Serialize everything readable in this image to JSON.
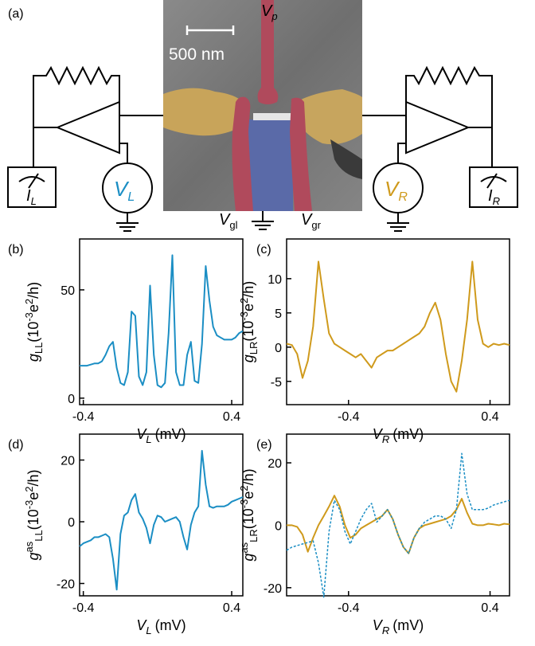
{
  "diagram": {
    "panel_label": "(a)",
    "scale_bar": "500 nm",
    "gate_p": {
      "text": "V",
      "sub": "p"
    },
    "gate_gl": {
      "text": "V",
      "sub": "gl"
    },
    "gate_gr": {
      "text": "V",
      "sub": "gr"
    },
    "meter_left": {
      "text": "I",
      "sub": "L"
    },
    "source_left": {
      "text": "V",
      "sub": "L"
    },
    "source_right": {
      "text": "V",
      "sub": "R"
    },
    "meter_right": {
      "text": "I",
      "sub": "R"
    }
  },
  "chart_data": [
    {
      "type": "line",
      "panel_label": "(b)",
      "x_label": {
        "symbol": "V",
        "sub": "L",
        "unit": "(mV)"
      },
      "y_label": [
        {
          "text": "g",
          "style": "italic"
        },
        {
          "text": "LL",
          "style": "sub"
        },
        {
          "text": "(10"
        },
        {
          "text": "-3",
          "style": "sup"
        },
        {
          "text": "e"
        },
        {
          "text": "2",
          "style": "sup"
        },
        {
          "text": "/h)"
        }
      ],
      "xlim": [
        -0.42,
        0.46
      ],
      "xticks": [
        -0.4,
        0.4
      ],
      "ylim": [
        -3,
        73.5
      ],
      "yticks": [
        0,
        50
      ],
      "color": "#1b8ec4",
      "x": [
        -0.42,
        -0.4,
        -0.38,
        -0.36,
        -0.34,
        -0.32,
        -0.3,
        -0.28,
        -0.26,
        -0.24,
        -0.22,
        -0.2,
        -0.18,
        -0.16,
        -0.14,
        -0.12,
        -0.1,
        -0.08,
        -0.06,
        -0.04,
        -0.02,
        0,
        0.02,
        0.04,
        0.06,
        0.08,
        0.1,
        0.12,
        0.14,
        0.16,
        0.18,
        0.2,
        0.22,
        0.24,
        0.26,
        0.28,
        0.3,
        0.32,
        0.34,
        0.36,
        0.38,
        0.4,
        0.42,
        0.44,
        0.46
      ],
      "values": [
        15,
        15,
        15,
        15.5,
        16,
        16,
        17,
        20,
        24,
        26,
        14,
        7,
        6,
        12,
        40,
        38,
        10,
        6,
        12,
        52,
        20,
        6,
        5,
        7,
        30,
        66,
        12,
        6,
        6,
        20,
        26,
        8,
        7,
        25,
        61,
        45,
        33,
        29,
        28,
        27,
        27,
        27,
        28,
        30,
        31
      ]
    },
    {
      "type": "line",
      "panel_label": "(c)",
      "x_label": {
        "symbol": "V",
        "sub": "R",
        "unit": "(mV)"
      },
      "y_label": [
        {
          "text": "g",
          "style": "italic"
        },
        {
          "text": "LR",
          "style": "sub"
        },
        {
          "text": "(10"
        },
        {
          "text": "-3",
          "style": "sup"
        },
        {
          "text": "e"
        },
        {
          "text": "2",
          "style": "sup"
        },
        {
          "text": "/h)"
        }
      ],
      "xlim": [
        -0.75,
        0.51
      ],
      "xticks": [
        -0.4,
        0.4
      ],
      "ylim": [
        -8.4,
        15.8
      ],
      "yticks": [
        -5,
        0,
        5,
        10
      ],
      "color": "#cf9a1c",
      "x": [
        -0.75,
        -0.72,
        -0.69,
        -0.66,
        -0.63,
        -0.6,
        -0.57,
        -0.54,
        -0.51,
        -0.48,
        -0.45,
        -0.42,
        -0.39,
        -0.36,
        -0.33,
        -0.3,
        -0.27,
        -0.24,
        -0.21,
        -0.18,
        -0.15,
        -0.12,
        -0.09,
        -0.06,
        -0.03,
        0,
        0.03,
        0.06,
        0.09,
        0.12,
        0.15,
        0.18,
        0.21,
        0.24,
        0.27,
        0.3,
        0.33,
        0.36,
        0.39,
        0.42,
        0.45,
        0.48,
        0.51
      ],
      "values": [
        0.5,
        0.3,
        -1,
        -4.5,
        -2,
        3,
        12.5,
        7,
        2,
        0.5,
        0,
        -0.5,
        -1,
        -1.5,
        -1,
        -2,
        -3,
        -1.5,
        -1,
        -0.5,
        -0.5,
        0,
        0.5,
        1,
        1.5,
        2,
        3,
        5,
        6.5,
        4,
        -1,
        -5,
        -6.5,
        -2,
        4,
        12.5,
        4,
        0.5,
        0,
        0.5,
        0.3,
        0.5,
        0.3
      ]
    },
    {
      "type": "line",
      "panel_label": "(d)",
      "x_label": {
        "symbol": "V",
        "sub": "L",
        "unit": "(mV)"
      },
      "y_label": [
        {
          "text": "g",
          "style": "italic"
        },
        {
          "text": "as",
          "style": "sup"
        },
        {
          "text": "LL",
          "style": "sub"
        },
        {
          "text": "(10"
        },
        {
          "text": "-3",
          "style": "sup"
        },
        {
          "text": "e"
        },
        {
          "text": "2",
          "style": "sup"
        },
        {
          "text": "/h)"
        }
      ],
      "xlim": [
        -0.42,
        0.46
      ],
      "xticks": [
        -0.4,
        0.4
      ],
      "ylim": [
        -24,
        28.4
      ],
      "yticks": [
        -20,
        0,
        20
      ],
      "color": "#1b8ec4",
      "x": [
        -0.42,
        -0.4,
        -0.38,
        -0.36,
        -0.34,
        -0.32,
        -0.3,
        -0.28,
        -0.26,
        -0.24,
        -0.22,
        -0.2,
        -0.18,
        -0.16,
        -0.14,
        -0.12,
        -0.1,
        -0.08,
        -0.06,
        -0.04,
        -0.02,
        0,
        0.02,
        0.04,
        0.06,
        0.08,
        0.1,
        0.12,
        0.14,
        0.16,
        0.18,
        0.2,
        0.22,
        0.24,
        0.26,
        0.28,
        0.3,
        0.32,
        0.34,
        0.36,
        0.38,
        0.4,
        0.42,
        0.44,
        0.46
      ],
      "values": [
        -8,
        -7,
        -6.5,
        -6,
        -5,
        -5,
        -4.5,
        -4,
        -5,
        -12,
        -22,
        -4,
        2,
        3,
        7,
        9,
        3,
        1,
        -2,
        -7,
        -1,
        2,
        1.5,
        0,
        0.5,
        1,
        1.5,
        0,
        -5,
        -9,
        -1,
        3,
        5,
        23,
        12,
        5,
        4.5,
        5,
        5,
        5,
        5.5,
        6.5,
        7,
        7.5,
        8
      ]
    },
    {
      "type": "line",
      "panel_label": "(e)",
      "x_label": {
        "symbol": "V",
        "sub": "R",
        "unit": "(mV)"
      },
      "y_label": [
        {
          "text": "g",
          "style": "italic"
        },
        {
          "text": "as",
          "style": "sup"
        },
        {
          "text": "LR",
          "style": "sub"
        },
        {
          "text": "(10"
        },
        {
          "text": "-3",
          "style": "sup"
        },
        {
          "text": "e"
        },
        {
          "text": "2",
          "style": "sup"
        },
        {
          "text": "/h)"
        }
      ],
      "xlim": [
        -0.75,
        0.51
      ],
      "xticks": [
        -0.4,
        0.4
      ],
      "ylim": [
        -22.6,
        29.2
      ],
      "yticks": [
        -20,
        0,
        20
      ],
      "x": [
        -0.75,
        -0.72,
        -0.69,
        -0.66,
        -0.63,
        -0.6,
        -0.57,
        -0.54,
        -0.51,
        -0.48,
        -0.45,
        -0.42,
        -0.39,
        -0.36,
        -0.33,
        -0.3,
        -0.27,
        -0.24,
        -0.21,
        -0.18,
        -0.15,
        -0.12,
        -0.09,
        -0.06,
        -0.03,
        0,
        0.03,
        0.06,
        0.09,
        0.12,
        0.15,
        0.18,
        0.21,
        0.24,
        0.27,
        0.3,
        0.33,
        0.36,
        0.39,
        0.42,
        0.45,
        0.48,
        0.51
      ],
      "series": [
        {
          "color": "#cf9a1c",
          "dash": false,
          "values": [
            0,
            0,
            -0.5,
            -3,
            -8.5,
            -4,
            0,
            3,
            6,
            9.5,
            6,
            0,
            -4,
            -3,
            -1,
            0,
            1,
            2,
            3,
            5,
            2,
            -3,
            -7,
            -9,
            -4,
            -1,
            0,
            0.5,
            1,
            1.5,
            2,
            3,
            5,
            8.5,
            4,
            0.5,
            0,
            0,
            0.5,
            0.3,
            0,
            0.5,
            0.3
          ]
        },
        {
          "color": "#1b8ec4",
          "dash": true,
          "values": [
            -8,
            -7,
            -6.5,
            -6,
            -5.5,
            -5,
            -12,
            -23,
            -2,
            8,
            5,
            -2,
            -6,
            -2,
            2,
            5,
            7,
            1,
            3,
            5,
            2,
            -3,
            -7,
            -9,
            -4,
            -1,
            1,
            2,
            3,
            3,
            2,
            -1,
            5,
            23,
            10,
            5,
            5,
            5,
            5.5,
            6.5,
            7,
            7.5,
            8
          ]
        }
      ]
    }
  ]
}
